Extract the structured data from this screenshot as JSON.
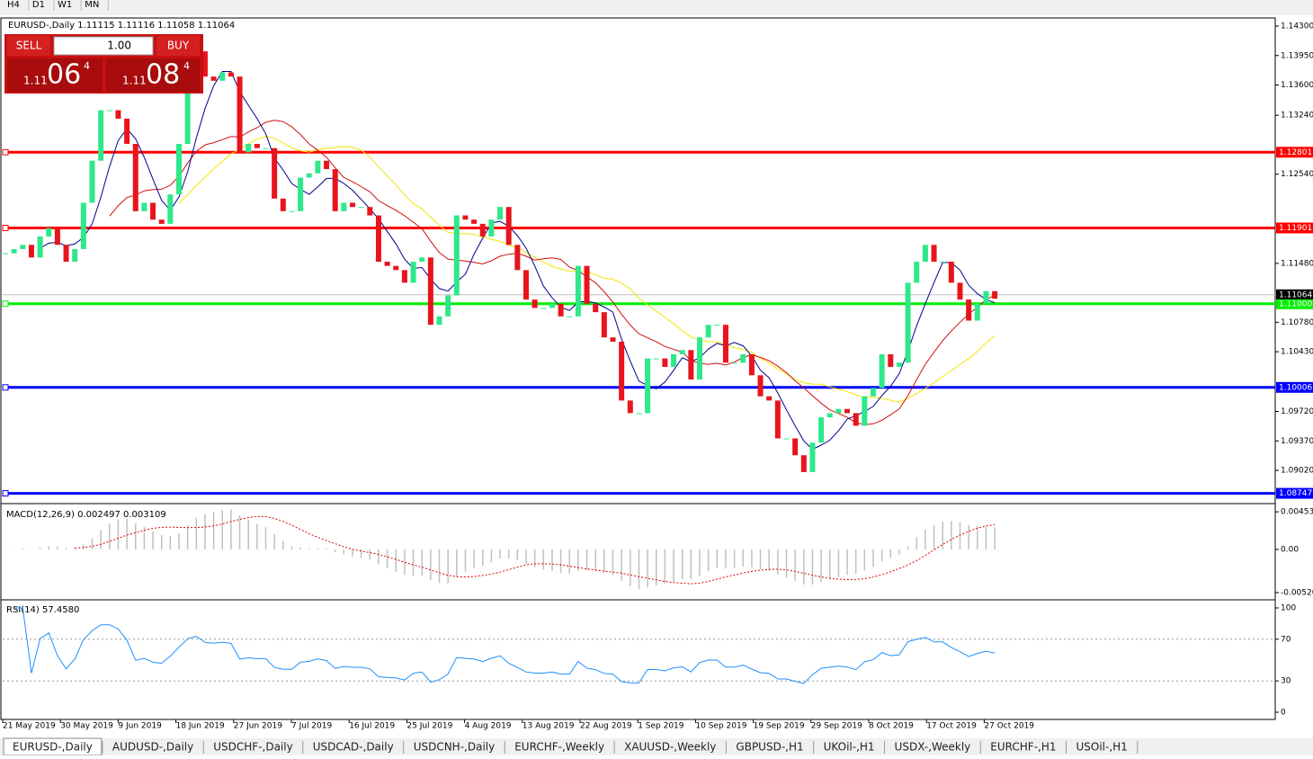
{
  "timeframes": [
    "H4",
    "D1",
    "W1",
    "MN"
  ],
  "chart": {
    "title": "EURUSD-,Daily",
    "ohlc_text": "1.11115 1.11116 1.11058 1.11064",
    "closes": [
      1.116,
      1.1165,
      1.117,
      1.1155,
      1.118,
      1.119,
      1.117,
      1.115,
      1.1165,
      1.122,
      1.127,
      1.133,
      1.133,
      1.132,
      1.129,
      1.121,
      1.122,
      1.12,
      1.1195,
      1.123,
      1.129,
      1.137,
      1.14,
      1.137,
      1.1365,
      1.1375,
      1.137,
      1.128,
      1.129,
      1.1285,
      1.1285,
      1.1225,
      1.121,
      1.121,
      1.125,
      1.1255,
      1.127,
      1.126,
      1.121,
      1.122,
      1.1215,
      1.1215,
      1.1205,
      1.115,
      1.1145,
      1.114,
      1.1125,
      1.115,
      1.1155,
      1.1075,
      1.1085,
      1.111,
      1.1205,
      1.12,
      1.1195,
      1.118,
      1.12,
      1.1215,
      1.117,
      1.114,
      1.1105,
      1.1095,
      1.1095,
      1.11,
      1.1085,
      1.1085,
      1.1145,
      1.11,
      1.109,
      1.106,
      1.1055,
      1.0985,
      1.097,
      1.097,
      1.1035,
      1.1035,
      1.1025,
      1.104,
      1.1045,
      1.101,
      1.106,
      1.1075,
      1.1075,
      1.103,
      1.103,
      1.104,
      1.1015,
      1.099,
      1.0985,
      1.094,
      1.094,
      1.092,
      1.09,
      1.0935,
      1.0965,
      1.097,
      1.0975,
      1.097,
      1.0955,
      1.099,
      1.1,
      1.104,
      1.1025,
      1.103,
      1.1125,
      1.115,
      1.117,
      1.115,
      1.115,
      1.1125,
      1.1105,
      1.108,
      1.11,
      1.1115,
      1.1106
    ],
    "up_color": "#2ee88a",
    "down_color": "#e8141c",
    "ylim": [
      1.08657,
      1.14375
    ],
    "yticks": [
      {
        "value": 1.143,
        "label": "1.14300"
      },
      {
        "value": 1.1395,
        "label": "1.13950"
      },
      {
        "value": 1.136,
        "label": "1.13600"
      },
      {
        "value": 1.1324,
        "label": "1.13240"
      },
      {
        "value": 1.1254,
        "label": "1.12540"
      },
      {
        "value": 1.1148,
        "label": "1.11480"
      },
      {
        "value": 1.1078,
        "label": "1.10780"
      },
      {
        "value": 1.1043,
        "label": "1.10430"
      },
      {
        "value": 1.0972,
        "label": "1.09720"
      },
      {
        "value": 1.0937,
        "label": "1.09370"
      },
      {
        "value": 1.0902,
        "label": "1.09020"
      }
    ],
    "levels": [
      {
        "value": 1.12801,
        "label": "1.12801",
        "color": "#ff0000"
      },
      {
        "value": 1.11901,
        "label": "1.11901",
        "color": "#ff0000"
      },
      {
        "value": 1.11,
        "label": "1.11000",
        "color": "#00ee00"
      },
      {
        "value": 1.10006,
        "label": "1.10006",
        "color": "#0000ff"
      },
      {
        "value": 1.08747,
        "label": "1.08747",
        "color": "#0000ff"
      }
    ],
    "price": {
      "value": 1.11064,
      "label": "1.11064"
    },
    "dates": [
      "21 May 2019",
      "30 May 2019",
      "9 Jun 2019",
      "18 Jun 2019",
      "27 Jun 2019",
      "7 Jul 2019",
      "16 Jul 2019",
      "25 Jul 2019",
      "4 Aug 2019",
      "13 Aug 2019",
      "22 Aug 2019",
      "1 Sep 2019",
      "10 Sep 2019",
      "19 Sep 2019",
      "29 Sep 2019",
      "8 Oct 2019",
      "17 Oct 2019",
      "27 Oct 2019"
    ]
  },
  "macd": {
    "title": "MACD(12,26,9) 0.002497 0.003109",
    "ylim": [
      -0.00586,
      0.0052
    ],
    "yticks": [
      0.004535,
      {
        "value": 0,
        "label": "0.00"
      },
      -0.005205
    ]
  },
  "rsi": {
    "title": "RSI(14) 57.4580",
    "ylim": [
      0,
      100
    ],
    "yticks": [
      100,
      70,
      30,
      0
    ]
  },
  "ticket": {
    "sell": "SELL",
    "buy": "BUY",
    "lots": "1.00",
    "bid": [
      "1.11",
      "06",
      "4"
    ],
    "ask": [
      "1.11",
      "08",
      "4"
    ]
  },
  "tabs": [
    "EURUSD-,Daily",
    "AUDUSD-,Daily",
    "USDCHF-,Daily",
    "USDCAD-,Daily",
    "USDCNH-,Daily",
    "EURCHF-,Weekly",
    "XAUUSD-,Weekly",
    "GBPUSD-,H1",
    "UKOil-,H1",
    "USDX-,Weekly",
    "EURCHF-,H1",
    "USOil-,H1"
  ]
}
